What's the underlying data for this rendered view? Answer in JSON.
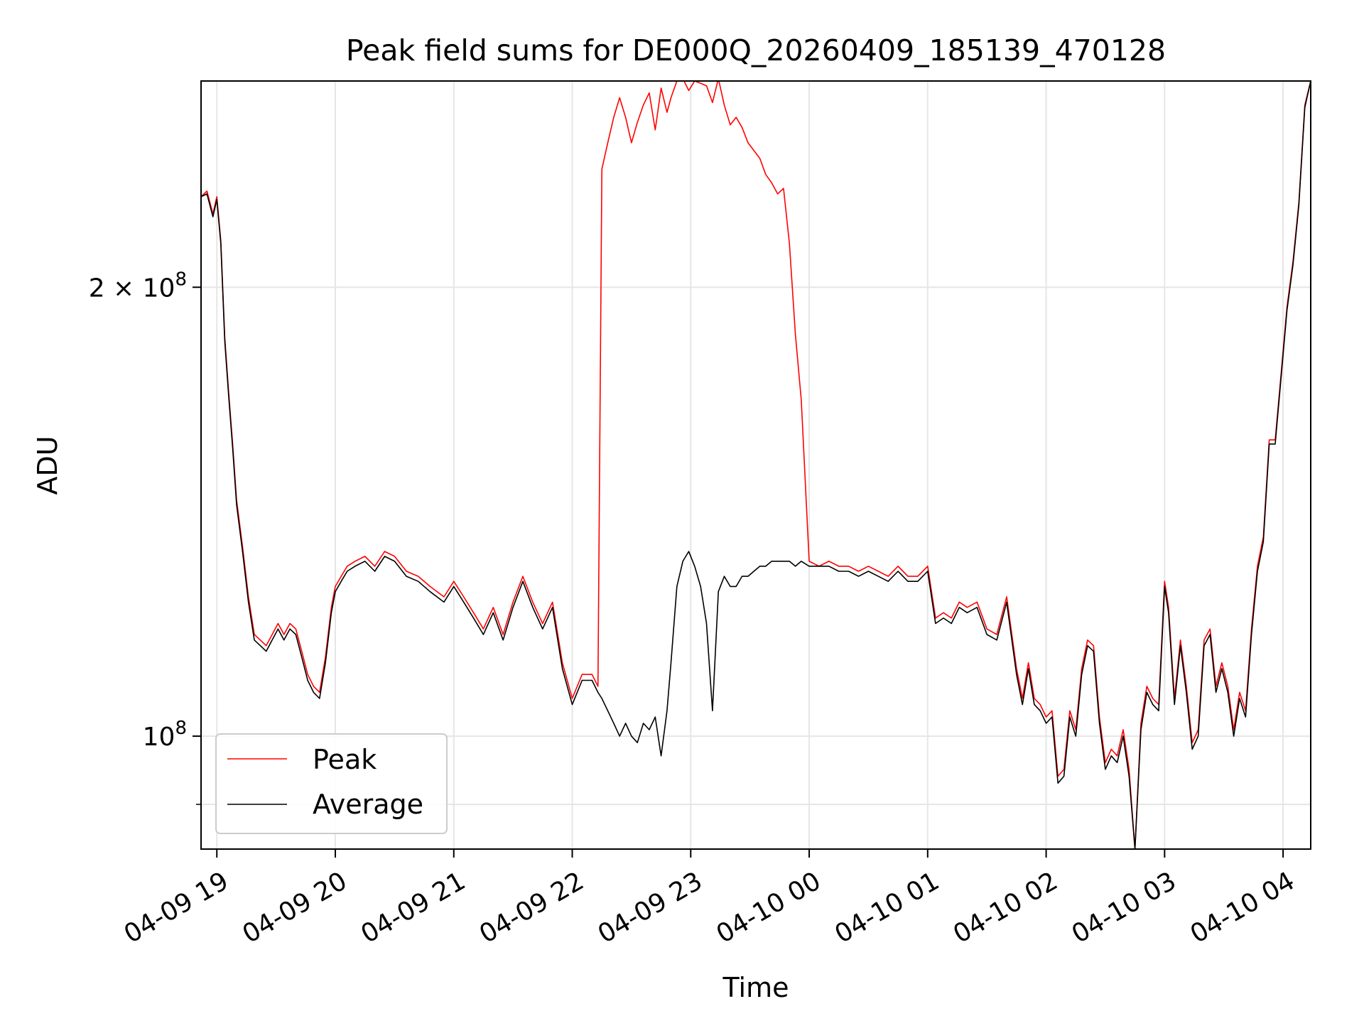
{
  "chart_data": {
    "type": "line",
    "title": "Peak field sums for DE000Q_20260409_185139_470128",
    "xlabel": "Time",
    "ylabel": "ADU",
    "y_scale": "log",
    "ylim": [
      84000000,
      275000000
    ],
    "xlim": [
      "2026-04-09 18:52",
      "2026-04-10 04:14"
    ],
    "grid": true,
    "legend_location": "lower left",
    "x_ticks": [
      {
        "t": "2026-04-09 19:00",
        "label": "04-09 19"
      },
      {
        "t": "2026-04-09 20:00",
        "label": "04-09 20"
      },
      {
        "t": "2026-04-09 21:00",
        "label": "04-09 21"
      },
      {
        "t": "2026-04-09 22:00",
        "label": "04-09 22"
      },
      {
        "t": "2026-04-09 23:00",
        "label": "04-09 23"
      },
      {
        "t": "2026-04-10 00:00",
        "label": "04-10 00"
      },
      {
        "t": "2026-04-10 01:00",
        "label": "04-10 01"
      },
      {
        "t": "2026-04-10 02:00",
        "label": "04-10 02"
      },
      {
        "t": "2026-04-10 03:00",
        "label": "04-10 03"
      },
      {
        "t": "2026-04-10 04:00",
        "label": "04-10 04"
      }
    ],
    "y_ticks": [
      {
        "value": 100000000,
        "base": "10",
        "exp": "8",
        "coef": ""
      },
      {
        "value": 200000000,
        "base": "10",
        "exp": "8",
        "coef": "2 × "
      }
    ],
    "y_minor_ticks": [
      90000000
    ],
    "series": [
      {
        "name": "Peak",
        "color": "#ff0000",
        "x": [
          "2026-04-09 18:52",
          "2026-04-09 18:55",
          "2026-04-09 18:58",
          "2026-04-09 19:00",
          "2026-04-09 19:02",
          "2026-04-09 19:04",
          "2026-04-09 19:06",
          "2026-04-09 19:08",
          "2026-04-09 19:10",
          "2026-04-09 19:13",
          "2026-04-09 19:16",
          "2026-04-09 19:19",
          "2026-04-09 19:22",
          "2026-04-09 19:25",
          "2026-04-09 19:28",
          "2026-04-09 19:31",
          "2026-04-09 19:34",
          "2026-04-09 19:37",
          "2026-04-09 19:40",
          "2026-04-09 19:43",
          "2026-04-09 19:46",
          "2026-04-09 19:49",
          "2026-04-09 19:52",
          "2026-04-09 19:55",
          "2026-04-09 19:58",
          "2026-04-09 20:00",
          "2026-04-09 20:03",
          "2026-04-09 20:06",
          "2026-04-09 20:10",
          "2026-04-09 20:15",
          "2026-04-09 20:20",
          "2026-04-09 20:25",
          "2026-04-09 20:30",
          "2026-04-09 20:36",
          "2026-04-09 20:42",
          "2026-04-09 20:48",
          "2026-04-09 20:55",
          "2026-04-09 21:00",
          "2026-04-09 21:05",
          "2026-04-09 21:10",
          "2026-04-09 21:15",
          "2026-04-09 21:20",
          "2026-04-09 21:25",
          "2026-04-09 21:30",
          "2026-04-09 21:35",
          "2026-04-09 21:40",
          "2026-04-09 21:45",
          "2026-04-09 21:50",
          "2026-04-09 21:55",
          "2026-04-09 22:00",
          "2026-04-09 22:05",
          "2026-04-09 22:10",
          "2026-04-09 22:13",
          "2026-04-09 22:15",
          "2026-04-09 22:18",
          "2026-04-09 22:21",
          "2026-04-09 22:24",
          "2026-04-09 22:27",
          "2026-04-09 22:30",
          "2026-04-09 22:33",
          "2026-04-09 22:36",
          "2026-04-09 22:39",
          "2026-04-09 22:42",
          "2026-04-09 22:45",
          "2026-04-09 22:48",
          "2026-04-09 22:50",
          "2026-04-09 22:53",
          "2026-04-09 22:56",
          "2026-04-09 22:59",
          "2026-04-09 23:02",
          "2026-04-09 23:05",
          "2026-04-09 23:08",
          "2026-04-09 23:11",
          "2026-04-09 23:14",
          "2026-04-09 23:17",
          "2026-04-09 23:20",
          "2026-04-09 23:23",
          "2026-04-09 23:26",
          "2026-04-09 23:29",
          "2026-04-09 23:32",
          "2026-04-09 23:35",
          "2026-04-09 23:38",
          "2026-04-09 23:41",
          "2026-04-09 23:44",
          "2026-04-09 23:47",
          "2026-04-09 23:50",
          "2026-04-09 23:53",
          "2026-04-09 23:56",
          "2026-04-10 00:00",
          "2026-04-10 00:05",
          "2026-04-10 00:10",
          "2026-04-10 00:15",
          "2026-04-10 00:20",
          "2026-04-10 00:25",
          "2026-04-10 00:30",
          "2026-04-10 00:35",
          "2026-04-10 00:40",
          "2026-04-10 00:45",
          "2026-04-10 00:50",
          "2026-04-10 00:55",
          "2026-04-10 01:00",
          "2026-04-10 01:04",
          "2026-04-10 01:08",
          "2026-04-10 01:12",
          "2026-04-10 01:16",
          "2026-04-10 01:20",
          "2026-04-10 01:25",
          "2026-04-10 01:30",
          "2026-04-10 01:35",
          "2026-04-10 01:40",
          "2026-04-10 01:45",
          "2026-04-10 01:48",
          "2026-04-10 01:51",
          "2026-04-10 01:54",
          "2026-04-10 01:57",
          "2026-04-10 02:00",
          "2026-04-10 02:03",
          "2026-04-10 02:06",
          "2026-04-10 02:09",
          "2026-04-10 02:12",
          "2026-04-10 02:15",
          "2026-04-10 02:18",
          "2026-04-10 02:21",
          "2026-04-10 02:24",
          "2026-04-10 02:27",
          "2026-04-10 02:30",
          "2026-04-10 02:33",
          "2026-04-10 02:36",
          "2026-04-10 02:39",
          "2026-04-10 02:42",
          "2026-04-10 02:45",
          "2026-04-10 02:48",
          "2026-04-10 02:51",
          "2026-04-10 02:54",
          "2026-04-10 02:57",
          "2026-04-10 03:00",
          "2026-04-10 03:02",
          "2026-04-10 03:05",
          "2026-04-10 03:08",
          "2026-04-10 03:11",
          "2026-04-10 03:14",
          "2026-04-10 03:17",
          "2026-04-10 03:20",
          "2026-04-10 03:23",
          "2026-04-10 03:26",
          "2026-04-10 03:29",
          "2026-04-10 03:32",
          "2026-04-10 03:35",
          "2026-04-10 03:38",
          "2026-04-10 03:41",
          "2026-04-10 03:44",
          "2026-04-10 03:47",
          "2026-04-10 03:50",
          "2026-04-10 03:53",
          "2026-04-10 03:56",
          "2026-04-10 03:59",
          "2026-04-10 04:02",
          "2026-04-10 04:05",
          "2026-04-10 04:08",
          "2026-04-10 04:11",
          "2026-04-10 04:14"
        ],
        "y": [
          230000000,
          232000000,
          224000000,
          230000000,
          215000000,
          185000000,
          170000000,
          157000000,
          144000000,
          134000000,
          124000000,
          117000000,
          116000000,
          115000000,
          117000000,
          119000000,
          117000000,
          119000000,
          118000000,
          114000000,
          110000000,
          108000000,
          107000000,
          113000000,
          122000000,
          126000000,
          128000000,
          130000000,
          131000000,
          132000000,
          130000000,
          133000000,
          132000000,
          129000000,
          128000000,
          126000000,
          124000000,
          127000000,
          124000000,
          121000000,
          118000000,
          122000000,
          117000000,
          123000000,
          128000000,
          123000000,
          119000000,
          123000000,
          112000000,
          106000000,
          110000000,
          110000000,
          108000000,
          240000000,
          250000000,
          260000000,
          268000000,
          260000000,
          250000000,
          258000000,
          265000000,
          270000000,
          255000000,
          272000000,
          262000000,
          268000000,
          275000000,
          276000000,
          271000000,
          275000000,
          274000000,
          273000000,
          266000000,
          276000000,
          265000000,
          257000000,
          260000000,
          256000000,
          250000000,
          247000000,
          244000000,
          238000000,
          235000000,
          231000000,
          233000000,
          214000000,
          186000000,
          168000000,
          131000000,
          130000000,
          131000000,
          130000000,
          130000000,
          129000000,
          130000000,
          129000000,
          128000000,
          130000000,
          128000000,
          128000000,
          130000000,
          120000000,
          121000000,
          120000000,
          123000000,
          122000000,
          123000000,
          118000000,
          117000000,
          124000000,
          111000000,
          106000000,
          112000000,
          106000000,
          105000000,
          103000000,
          104000000,
          94000000,
          95000000,
          104000000,
          101000000,
          111000000,
          116000000,
          115000000,
          103000000,
          96000000,
          98000000,
          97000000,
          101000000,
          95000000,
          84000000,
          102000000,
          108000000,
          106000000,
          105000000,
          127000000,
          122000000,
          106000000,
          116000000,
          108000000,
          99000000,
          101000000,
          116000000,
          118000000,
          108000000,
          112000000,
          108000000,
          101000000,
          107000000,
          104000000,
          118000000,
          130000000,
          136000000,
          158000000,
          158000000,
          175000000,
          194000000,
          208000000,
          228000000,
          265000000,
          275000000
        ]
      },
      {
        "name": "Average",
        "color": "#000000",
        "x": [
          "2026-04-09 18:52",
          "2026-04-09 18:55",
          "2026-04-09 18:58",
          "2026-04-09 19:00",
          "2026-04-09 19:02",
          "2026-04-09 19:04",
          "2026-04-09 19:06",
          "2026-04-09 19:08",
          "2026-04-09 19:10",
          "2026-04-09 19:13",
          "2026-04-09 19:16",
          "2026-04-09 19:19",
          "2026-04-09 19:22",
          "2026-04-09 19:25",
          "2026-04-09 19:28",
          "2026-04-09 19:31",
          "2026-04-09 19:34",
          "2026-04-09 19:37",
          "2026-04-09 19:40",
          "2026-04-09 19:43",
          "2026-04-09 19:46",
          "2026-04-09 19:49",
          "2026-04-09 19:52",
          "2026-04-09 19:55",
          "2026-04-09 19:58",
          "2026-04-09 20:00",
          "2026-04-09 20:03",
          "2026-04-09 20:06",
          "2026-04-09 20:10",
          "2026-04-09 20:15",
          "2026-04-09 20:20",
          "2026-04-09 20:25",
          "2026-04-09 20:30",
          "2026-04-09 20:36",
          "2026-04-09 20:42",
          "2026-04-09 20:48",
          "2026-04-09 20:55",
          "2026-04-09 21:00",
          "2026-04-09 21:05",
          "2026-04-09 21:10",
          "2026-04-09 21:15",
          "2026-04-09 21:20",
          "2026-04-09 21:25",
          "2026-04-09 21:30",
          "2026-04-09 21:35",
          "2026-04-09 21:40",
          "2026-04-09 21:45",
          "2026-04-09 21:50",
          "2026-04-09 21:55",
          "2026-04-09 22:00",
          "2026-04-09 22:05",
          "2026-04-09 22:10",
          "2026-04-09 22:13",
          "2026-04-09 22:15",
          "2026-04-09 22:18",
          "2026-04-09 22:21",
          "2026-04-09 22:24",
          "2026-04-09 22:27",
          "2026-04-09 22:30",
          "2026-04-09 22:33",
          "2026-04-09 22:36",
          "2026-04-09 22:39",
          "2026-04-09 22:42",
          "2026-04-09 22:45",
          "2026-04-09 22:48",
          "2026-04-09 22:50",
          "2026-04-09 22:53",
          "2026-04-09 22:56",
          "2026-04-09 22:59",
          "2026-04-09 23:02",
          "2026-04-09 23:05",
          "2026-04-09 23:08",
          "2026-04-09 23:11",
          "2026-04-09 23:14",
          "2026-04-09 23:17",
          "2026-04-09 23:20",
          "2026-04-09 23:23",
          "2026-04-09 23:26",
          "2026-04-09 23:29",
          "2026-04-09 23:32",
          "2026-04-09 23:35",
          "2026-04-09 23:38",
          "2026-04-09 23:41",
          "2026-04-09 23:44",
          "2026-04-09 23:47",
          "2026-04-09 23:50",
          "2026-04-09 23:53",
          "2026-04-09 23:56",
          "2026-04-10 00:00",
          "2026-04-10 00:05",
          "2026-04-10 00:10",
          "2026-04-10 00:15",
          "2026-04-10 00:20",
          "2026-04-10 00:25",
          "2026-04-10 00:30",
          "2026-04-10 00:35",
          "2026-04-10 00:40",
          "2026-04-10 00:45",
          "2026-04-10 00:50",
          "2026-04-10 00:55",
          "2026-04-10 01:00",
          "2026-04-10 01:04",
          "2026-04-10 01:08",
          "2026-04-10 01:12",
          "2026-04-10 01:16",
          "2026-04-10 01:20",
          "2026-04-10 01:25",
          "2026-04-10 01:30",
          "2026-04-10 01:35",
          "2026-04-10 01:40",
          "2026-04-10 01:45",
          "2026-04-10 01:48",
          "2026-04-10 01:51",
          "2026-04-10 01:54",
          "2026-04-10 01:57",
          "2026-04-10 02:00",
          "2026-04-10 02:03",
          "2026-04-10 02:06",
          "2026-04-10 02:09",
          "2026-04-10 02:12",
          "2026-04-10 02:15",
          "2026-04-10 02:18",
          "2026-04-10 02:21",
          "2026-04-10 02:24",
          "2026-04-10 02:27",
          "2026-04-10 02:30",
          "2026-04-10 02:33",
          "2026-04-10 02:36",
          "2026-04-10 02:39",
          "2026-04-10 02:42",
          "2026-04-10 02:45",
          "2026-04-10 02:48",
          "2026-04-10 02:51",
          "2026-04-10 02:54",
          "2026-04-10 02:57",
          "2026-04-10 03:00",
          "2026-04-10 03:02",
          "2026-04-10 03:05",
          "2026-04-10 03:08",
          "2026-04-10 03:11",
          "2026-04-10 03:14",
          "2026-04-10 03:17",
          "2026-04-10 03:20",
          "2026-04-10 03:23",
          "2026-04-10 03:26",
          "2026-04-10 03:29",
          "2026-04-10 03:32",
          "2026-04-10 03:35",
          "2026-04-10 03:38",
          "2026-04-10 03:41",
          "2026-04-10 03:44",
          "2026-04-10 03:47",
          "2026-04-10 03:50",
          "2026-04-10 03:53",
          "2026-04-10 03:56",
          "2026-04-10 03:59",
          "2026-04-10 04:02",
          "2026-04-10 04:05",
          "2026-04-10 04:08",
          "2026-04-10 04:11",
          "2026-04-10 04:14"
        ],
        "y": [
          230000000,
          231000000,
          223000000,
          229000000,
          214000000,
          184000000,
          169000000,
          156000000,
          143000000,
          133000000,
          123000000,
          116000000,
          115000000,
          114000000,
          116000000,
          118000000,
          116000000,
          118000000,
          117000000,
          113000000,
          109000000,
          107000000,
          106000000,
          112000000,
          121000000,
          125000000,
          127000000,
          129000000,
          130000000,
          131000000,
          129000000,
          132000000,
          131000000,
          128000000,
          127000000,
          125000000,
          123000000,
          126000000,
          123000000,
          120000000,
          117000000,
          121000000,
          116000000,
          122000000,
          127000000,
          122000000,
          118000000,
          122000000,
          111000000,
          105000000,
          109000000,
          109000000,
          107000000,
          106000000,
          104000000,
          102000000,
          100000000,
          102000000,
          100000000,
          99000000,
          102000000,
          101000000,
          103000000,
          97000000,
          104000000,
          112000000,
          126000000,
          131000000,
          133000000,
          130000000,
          126000000,
          119000000,
          104000000,
          125000000,
          128000000,
          126000000,
          126000000,
          128000000,
          128000000,
          129000000,
          130000000,
          130000000,
          131000000,
          131000000,
          131000000,
          131000000,
          130000000,
          131000000,
          130000000,
          130000000,
          130000000,
          129000000,
          129000000,
          128000000,
          129000000,
          128000000,
          127000000,
          129000000,
          127000000,
          127000000,
          129000000,
          119000000,
          120000000,
          119000000,
          122000000,
          121000000,
          122000000,
          117000000,
          116000000,
          123000000,
          110000000,
          105000000,
          111000000,
          105000000,
          104000000,
          102000000,
          103000000,
          93000000,
          94000000,
          103000000,
          100000000,
          110000000,
          115000000,
          114000000,
          102000000,
          95000000,
          97000000,
          96000000,
          100000000,
          94000000,
          84000000,
          101000000,
          107000000,
          105000000,
          104000000,
          126000000,
          121000000,
          105000000,
          115000000,
          107000000,
          98000000,
          100000000,
          115000000,
          117000000,
          107000000,
          111000000,
          107000000,
          100000000,
          106000000,
          103000000,
          117000000,
          129000000,
          135000000,
          157000000,
          157000000,
          174000000,
          193000000,
          207000000,
          227000000,
          264000000,
          275000000
        ]
      }
    ]
  }
}
